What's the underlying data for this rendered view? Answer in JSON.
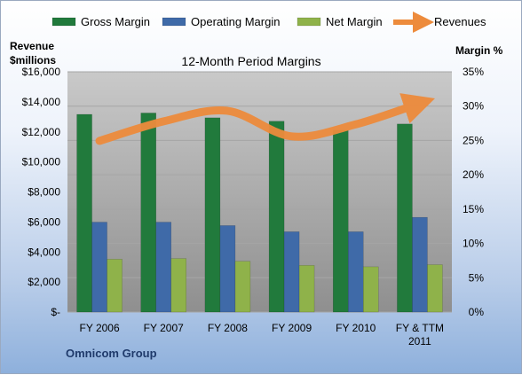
{
  "chart_data": {
    "type": "bar",
    "title": "12-Month Period Margins",
    "company": "Omnicom Group",
    "categories": [
      "FY 2006",
      "FY 2007",
      "FY 2008",
      "FY 2009",
      "FY 2010",
      "FY & TTM 2011"
    ],
    "y_left_label_line1": "Revenue",
    "y_left_label_line2": "$millions",
    "y_right_label": "Margin %",
    "ylim_left": [
      0,
      16000
    ],
    "ylim_right": [
      0,
      35
    ],
    "left_ticks": [
      "$-",
      "$2,000",
      "$4,000",
      "$6,000",
      "$8,000",
      "$10,000",
      "$12,000",
      "$14,000",
      "$16,000"
    ],
    "right_ticks": [
      "0%",
      "5%",
      "10%",
      "15%",
      "20%",
      "25%",
      "30%",
      "35%"
    ],
    "grid": true,
    "legend_position": "top",
    "series": [
      {
        "name": "Gross Margin",
        "axis": "right",
        "kind": "bar",
        "values": [
          28.8,
          29.0,
          28.3,
          27.8,
          26.5,
          27.4
        ],
        "color": "#217a3c"
      },
      {
        "name": "Operating Margin",
        "axis": "right",
        "kind": "bar",
        "values": [
          13.1,
          13.1,
          12.6,
          11.7,
          11.7,
          13.8
        ],
        "color": "#3f6aa8"
      },
      {
        "name": "Net Margin",
        "axis": "right",
        "kind": "bar",
        "values": [
          7.7,
          7.8,
          7.4,
          6.8,
          6.6,
          6.9
        ],
        "color": "#8fb24a"
      },
      {
        "name": "Revenues",
        "axis": "left",
        "kind": "line",
        "values": [
          11400,
          12700,
          13400,
          11700,
          12500,
          13900
        ],
        "color": "#ed8b3c"
      }
    ]
  }
}
